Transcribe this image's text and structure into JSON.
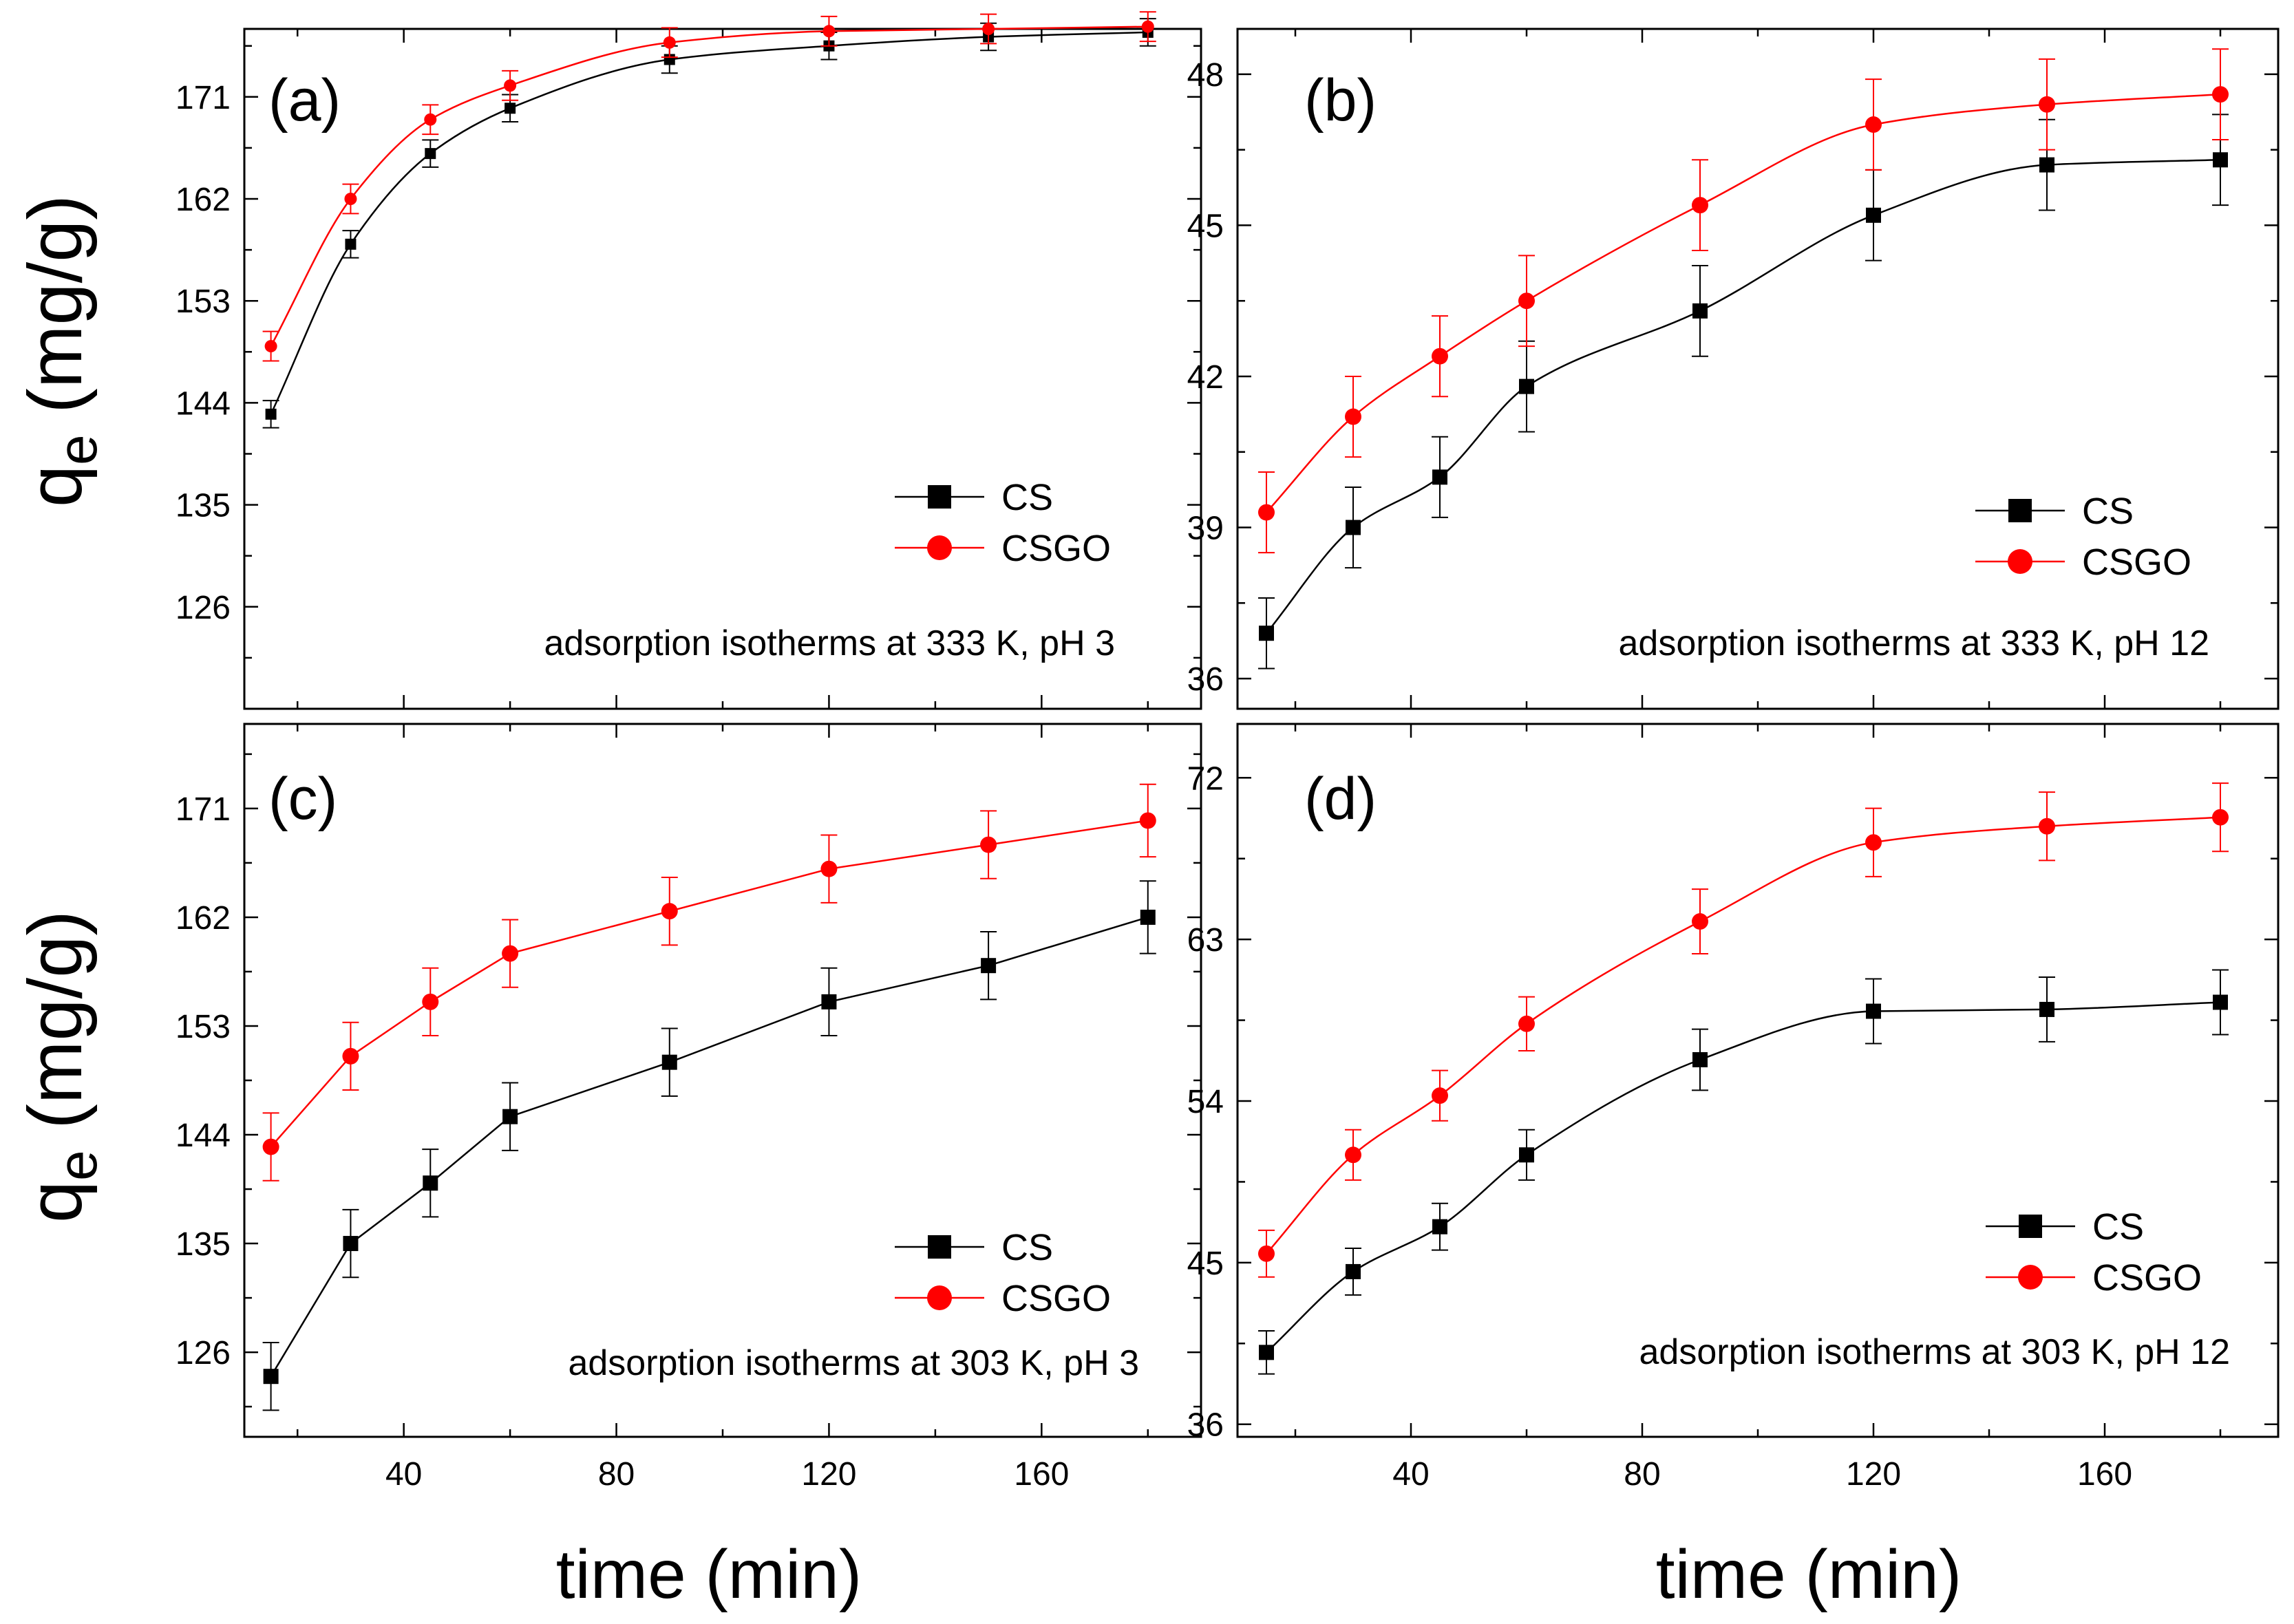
{
  "colors": {
    "cs": "#000000",
    "csgo": "#ff0000",
    "frame": "#000000"
  },
  "xlabel": "time (min)",
  "ylabel_main": "q",
  "ylabel_sub": "e",
  "ylabel_unit": " (mg/g)",
  "chart_data": [
    {
      "type": "line",
      "panel": "(a)",
      "title": "adsorption isotherms at 333 K, pH 3",
      "xlim": [
        10,
        190
      ],
      "ylim": [
        117,
        177
      ],
      "xticks": [
        40,
        80,
        120,
        160
      ],
      "yticks": [
        126,
        135,
        144,
        153,
        162,
        171
      ],
      "x": [
        15,
        30,
        45,
        60,
        90,
        120,
        150,
        180
      ],
      "series": [
        {
          "name": "CS",
          "marker": "square",
          "smooth": true,
          "values": [
            143.0,
            158.0,
            166.0,
            170.0,
            174.3,
            175.5,
            176.3,
            176.7
          ],
          "errors": [
            1.2,
            1.2,
            1.2,
            1.2,
            1.2,
            1.2,
            1.2,
            1.2
          ]
        },
        {
          "name": "CSGO",
          "marker": "circle",
          "smooth": true,
          "values": [
            149.0,
            162.0,
            169.0,
            172.0,
            175.8,
            176.8,
            177.0,
            177.2
          ],
          "errors": [
            1.3,
            1.3,
            1.3,
            1.3,
            1.3,
            1.3,
            1.3,
            1.3
          ]
        }
      ]
    },
    {
      "type": "line",
      "panel": "(b)",
      "title": "adsorption isotherms at 333 K, pH 12",
      "xlim": [
        10,
        190
      ],
      "ylim": [
        35.4,
        48.9
      ],
      "xticks": [
        40,
        80,
        120,
        160
      ],
      "yticks": [
        36,
        39,
        42,
        45,
        48
      ],
      "x": [
        15,
        30,
        45,
        60,
        90,
        120,
        150,
        180
      ],
      "series": [
        {
          "name": "CS",
          "marker": "square",
          "smooth": true,
          "values": [
            36.9,
            39.0,
            40.0,
            41.8,
            43.3,
            45.2,
            46.2,
            46.3
          ],
          "errors": [
            0.7,
            0.8,
            0.8,
            0.9,
            0.9,
            0.9,
            0.9,
            0.9
          ]
        },
        {
          "name": "CSGO",
          "marker": "circle",
          "smooth": true,
          "values": [
            39.3,
            41.2,
            42.4,
            43.5,
            45.4,
            47.0,
            47.4,
            47.6
          ],
          "errors": [
            0.8,
            0.8,
            0.8,
            0.9,
            0.9,
            0.9,
            0.9,
            0.9
          ]
        }
      ]
    },
    {
      "type": "line",
      "panel": "(c)",
      "title": "adsorption isotherms at 303 K, pH 3",
      "xlim": [
        10,
        190
      ],
      "ylim": [
        119,
        178
      ],
      "xticks": [
        40,
        80,
        120,
        160
      ],
      "yticks": [
        126,
        135,
        144,
        153,
        162,
        171
      ],
      "x": [
        15,
        30,
        45,
        60,
        90,
        120,
        150,
        180
      ],
      "series": [
        {
          "name": "CS",
          "marker": "square",
          "smooth": false,
          "values": [
            124.0,
            135.0,
            140.0,
            145.5,
            150.0,
            155.0,
            158.0,
            162.0
          ],
          "errors": [
            2.8,
            2.8,
            2.8,
            2.8,
            2.8,
            2.8,
            2.8,
            3.0
          ]
        },
        {
          "name": "CSGO",
          "marker": "circle",
          "smooth": false,
          "values": [
            143.0,
            150.5,
            155.0,
            159.0,
            162.5,
            166.0,
            168.0,
            170.0
          ],
          "errors": [
            2.8,
            2.8,
            2.8,
            2.8,
            2.8,
            2.8,
            2.8,
            3.0
          ]
        }
      ]
    },
    {
      "type": "line",
      "panel": "(d)",
      "title": "adsorption isotherms at 303 K, pH 12",
      "xlim": [
        10,
        190
      ],
      "ylim": [
        35.3,
        75.0
      ],
      "xticks": [
        40,
        80,
        120,
        160
      ],
      "yticks": [
        36,
        45,
        54,
        63,
        72
      ],
      "x": [
        15,
        30,
        45,
        60,
        90,
        120,
        150,
        180
      ],
      "series": [
        {
          "name": "CS",
          "marker": "square",
          "smooth": true,
          "values": [
            40.0,
            44.5,
            47.0,
            51.0,
            56.3,
            59.0,
            59.1,
            59.5
          ],
          "errors": [
            1.2,
            1.3,
            1.3,
            1.4,
            1.7,
            1.8,
            1.8,
            1.8
          ]
        },
        {
          "name": "CSGO",
          "marker": "circle",
          "smooth": true,
          "values": [
            45.5,
            51.0,
            54.3,
            58.3,
            64.0,
            68.4,
            69.3,
            69.8
          ],
          "errors": [
            1.3,
            1.4,
            1.4,
            1.5,
            1.8,
            1.9,
            1.9,
            1.9
          ]
        }
      ]
    }
  ]
}
